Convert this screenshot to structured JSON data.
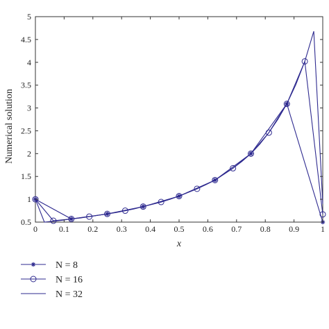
{
  "chart_data": {
    "type": "line",
    "title": "",
    "xlabel": "x",
    "ylabel": "Numerical solution",
    "xlim": [
      0,
      1
    ],
    "ylim": [
      0.5,
      5
    ],
    "xticks": [
      "0",
      "0.1",
      "0.2",
      "0.3",
      "0.4",
      "0.5",
      "0.6",
      "0.7",
      "0.8",
      "0.9",
      "1"
    ],
    "yticks": [
      "0.5",
      "1",
      "1.5",
      "2",
      "2.5",
      "3",
      "3.5",
      "4",
      "4.5",
      "5"
    ],
    "grid": false,
    "legend_position": "bottom-left",
    "line_color": "#2e2a8f",
    "series": [
      {
        "name": "N = 8",
        "marker": "star",
        "x": [
          0,
          0.125,
          0.25,
          0.375,
          0.5,
          0.625,
          0.75,
          0.875,
          1
        ],
        "y": [
          1.0,
          0.57,
          0.68,
          0.84,
          1.07,
          1.42,
          2.0,
          3.09,
          0.5
        ]
      },
      {
        "name": "N = 16",
        "marker": "circle",
        "x": [
          0,
          0.0625,
          0.125,
          0.1875,
          0.25,
          0.3125,
          0.375,
          0.4375,
          0.5,
          0.5625,
          0.625,
          0.6875,
          0.75,
          0.8125,
          0.875,
          0.9375,
          1
        ],
        "y": [
          1.0,
          0.53,
          0.57,
          0.62,
          0.68,
          0.75,
          0.84,
          0.94,
          1.07,
          1.23,
          1.42,
          1.68,
          2.0,
          2.46,
          3.09,
          4.02,
          0.67
        ]
      },
      {
        "name": "N = 32",
        "marker": "none",
        "x": [
          0,
          0.03125,
          0.0625,
          0.09375,
          0.125,
          0.15625,
          0.1875,
          0.21875,
          0.25,
          0.28125,
          0.3125,
          0.34375,
          0.375,
          0.40625,
          0.4375,
          0.46875,
          0.5,
          0.53125,
          0.5625,
          0.59375,
          0.625,
          0.65625,
          0.6875,
          0.71875,
          0.75,
          0.78125,
          0.8125,
          0.84375,
          0.875,
          0.90625,
          0.9375,
          0.96875,
          1
        ],
        "y": [
          1.0,
          0.5,
          0.52,
          0.54,
          0.57,
          0.59,
          0.62,
          0.65,
          0.68,
          0.71,
          0.75,
          0.79,
          0.84,
          0.89,
          0.94,
          1.0,
          1.07,
          1.15,
          1.23,
          1.32,
          1.42,
          1.55,
          1.68,
          1.83,
          2.0,
          2.21,
          2.46,
          2.75,
          3.09,
          3.51,
          4.02,
          4.68,
          0.9
        ]
      }
    ]
  }
}
